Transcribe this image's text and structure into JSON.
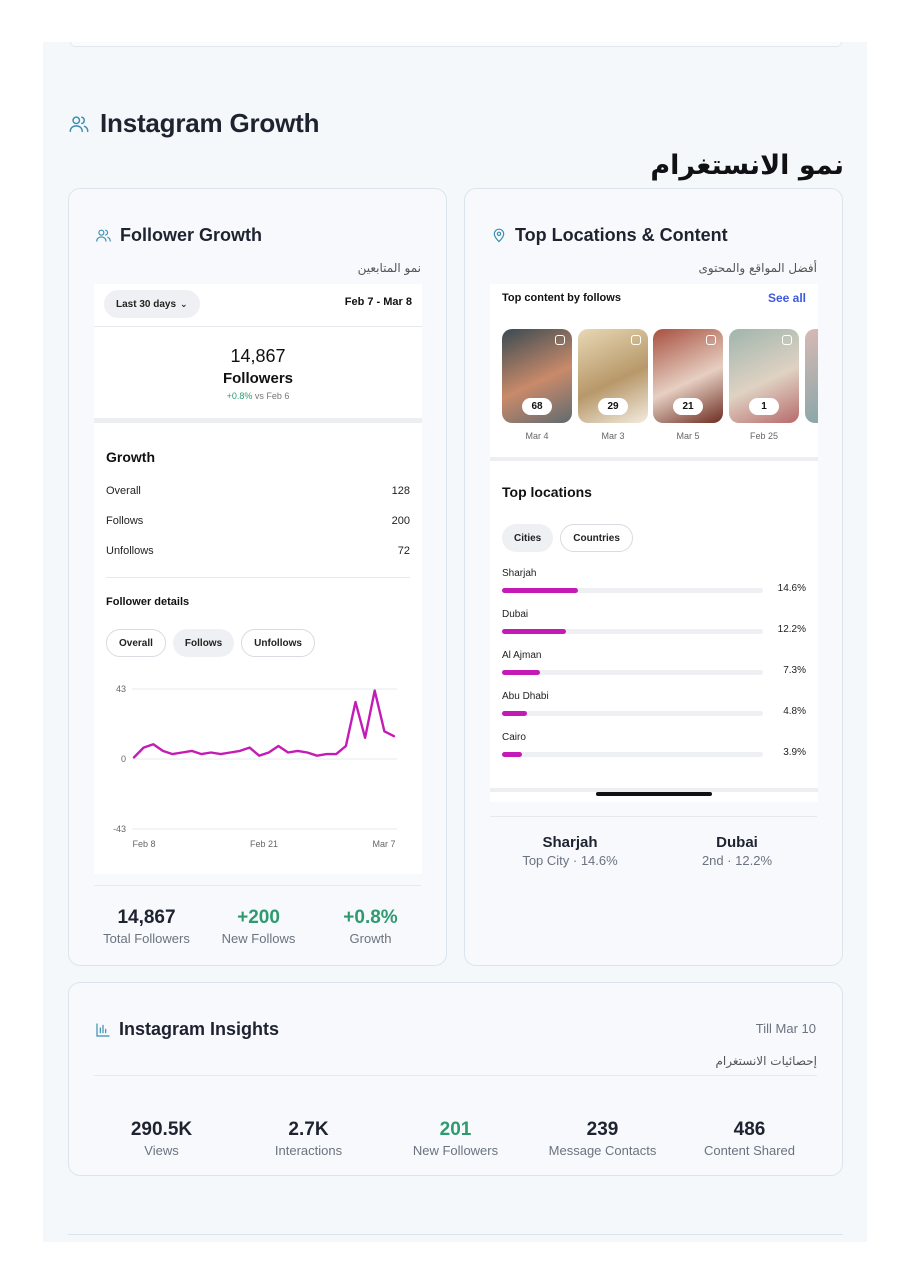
{
  "section": {
    "title": "Instagram Growth",
    "arabic_title": "نمو الانستغرام"
  },
  "follower_growth": {
    "title": "Follower Growth",
    "arabic": "نمو المتابعين",
    "range_label": "Last 30 days",
    "date_range": "Feb 7 - Mar 8",
    "followers_count": "14,867",
    "followers_label": "Followers",
    "change": "+0.8%",
    "change_suffix": "vs Feb 6",
    "growth_title": "Growth",
    "growth_rows": [
      {
        "label": "Overall",
        "value": "128"
      },
      {
        "label": "Follows",
        "value": "200"
      },
      {
        "label": "Unfollows",
        "value": "72"
      }
    ],
    "details_title": "Follower details",
    "detail_tabs": [
      "Overall",
      "Follows",
      "Unfollows"
    ],
    "summary": [
      {
        "value": "14,867",
        "label": "Total Followers"
      },
      {
        "value": "+200",
        "label": "New Follows"
      },
      {
        "value": "+0.8%",
        "label": "Growth"
      }
    ]
  },
  "chart_data": {
    "type": "line",
    "y_ticks": [
      "43",
      "0",
      "-43"
    ],
    "x_ticks": [
      "Feb 8",
      "Feb 21",
      "Mar 7"
    ],
    "ylim": [
      -43,
      43
    ],
    "series": [
      {
        "color": "#c41bb7",
        "values": [
          1,
          7,
          9,
          5,
          3,
          4,
          5,
          3,
          4,
          3,
          4,
          5,
          7,
          2,
          4,
          8,
          4,
          5,
          4,
          2,
          3,
          3,
          8,
          35,
          13,
          42,
          17,
          14
        ]
      }
    ]
  },
  "top_locations": {
    "title": "Top Locations & Content",
    "arabic": "أفضل المواقع والمحتوى",
    "content_title": "Top content by follows",
    "see_all": "See all",
    "thumbnails": [
      {
        "count": "68",
        "date": "Mar 4",
        "colors": [
          "#3a4a52",
          "#c98a6a",
          "#5f6b70"
        ]
      },
      {
        "count": "29",
        "date": "Mar 3",
        "colors": [
          "#e8d8b4",
          "#b7986a",
          "#f3ece0"
        ]
      },
      {
        "count": "21",
        "date": "Mar 5",
        "colors": [
          "#a8503f",
          "#e6cfc2",
          "#6d2c22"
        ]
      },
      {
        "count": "1",
        "date": "Feb 25",
        "colors": [
          "#9fb5ad",
          "#dfd2c3",
          "#b76a6a"
        ]
      }
    ],
    "locations_title": "Top locations",
    "location_tabs": [
      "Cities",
      "Countries"
    ],
    "locations": [
      {
        "name": "Sharjah",
        "pct": "14.6%",
        "value": 14.6
      },
      {
        "name": "Dubai",
        "pct": "12.2%",
        "value": 12.2
      },
      {
        "name": "Al Ajman",
        "pct": "7.3%",
        "value": 7.3
      },
      {
        "name": "Abu Dhabi",
        "pct": "4.8%",
        "value": 4.8
      },
      {
        "name": "Cairo",
        "pct": "3.9%",
        "value": 3.9
      }
    ],
    "summary": [
      {
        "value": "Sharjah",
        "label": "Top City · 14.6%"
      },
      {
        "value": "Dubai",
        "label": "2nd · 12.2%"
      }
    ]
  },
  "insights": {
    "title": "Instagram Insights",
    "till": "Till Mar 10",
    "arabic": "إحصائيات الانستغرام",
    "stats": [
      {
        "value": "290.5K",
        "label": "Views"
      },
      {
        "value": "2.7K",
        "label": "Interactions"
      },
      {
        "value": "201",
        "label": "New Followers"
      },
      {
        "value": "239",
        "label": "Message Contacts"
      },
      {
        "value": "486",
        "label": "Content Shared"
      }
    ]
  }
}
